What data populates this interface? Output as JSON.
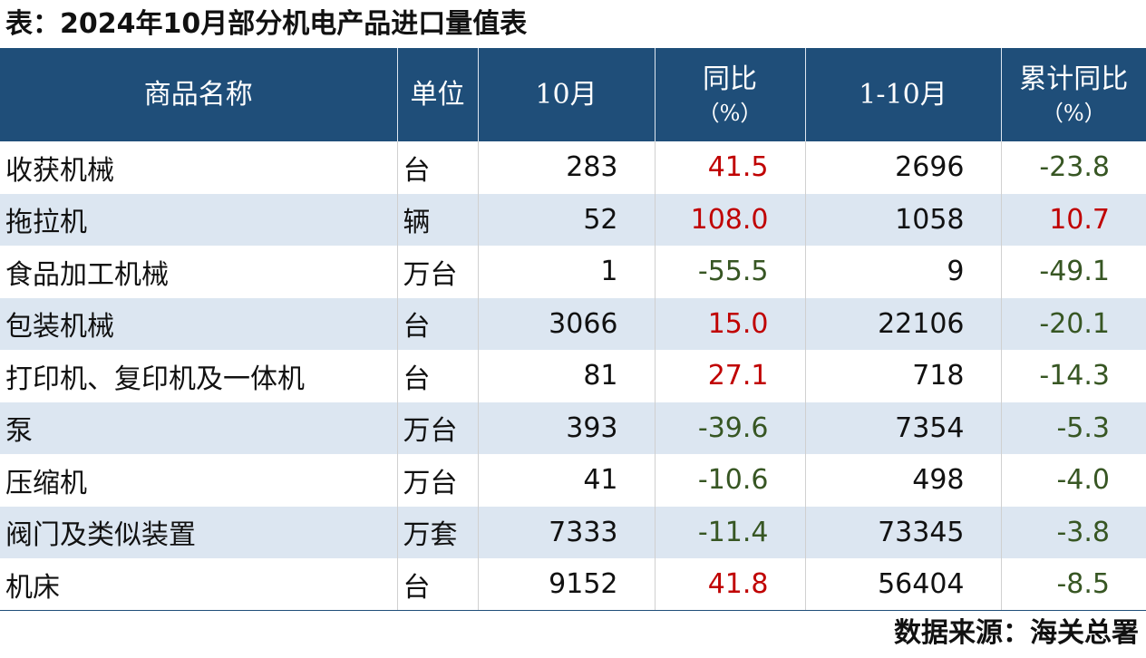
{
  "title": "表：2024年10月部分机电产品进口量值表",
  "colors": {
    "header_bg": "#1f4e79",
    "stripe_bg": "#dce6f1",
    "positive": "#c00000",
    "negative": "#375623"
  },
  "table": {
    "headers": {
      "name": "商品名称",
      "unit": "单位",
      "oct": "10月",
      "yoy": "同比",
      "yoy_unit": "（%）",
      "ytd": "1-10月",
      "ytd_yoy": "累计同比",
      "ytd_yoy_unit": "（%）"
    },
    "rows": [
      {
        "name": "收获机械",
        "unit": "台",
        "oct": "283",
        "yoy": "41.5",
        "ytd": "2696",
        "ytd_yoy": "-23.8"
      },
      {
        "name": "拖拉机",
        "unit": "辆",
        "oct": "52",
        "yoy": "108.0",
        "ytd": "1058",
        "ytd_yoy": "10.7"
      },
      {
        "name": "食品加工机械",
        "unit": "万台",
        "oct": "1",
        "yoy": "-55.5",
        "ytd": "9",
        "ytd_yoy": "-49.1"
      },
      {
        "name": "包装机械",
        "unit": "台",
        "oct": "3066",
        "yoy": "15.0",
        "ytd": "22106",
        "ytd_yoy": "-20.1"
      },
      {
        "name": "打印机、复印机及一体机",
        "unit": "台",
        "oct": "81",
        "yoy": "27.1",
        "ytd": "718",
        "ytd_yoy": "-14.3"
      },
      {
        "name": "泵",
        "unit": "万台",
        "oct": "393",
        "yoy": "-39.6",
        "ytd": "7354",
        "ytd_yoy": "-5.3"
      },
      {
        "name": "压缩机",
        "unit": "万台",
        "oct": "41",
        "yoy": "-10.6",
        "ytd": "498",
        "ytd_yoy": "-4.0"
      },
      {
        "name": "阀门及类似装置",
        "unit": "万套",
        "oct": "7333",
        "yoy": "-11.4",
        "ytd": "73345",
        "ytd_yoy": "-3.8"
      },
      {
        "name": "机床",
        "unit": "台",
        "oct": "9152",
        "yoy": "41.8",
        "ytd": "56404",
        "ytd_yoy": "-8.5"
      }
    ]
  },
  "source": "数据来源：海关总署"
}
